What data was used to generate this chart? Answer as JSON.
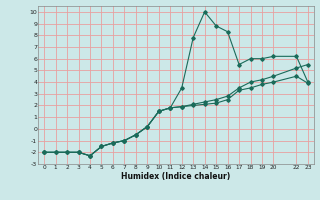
{
  "xlabel": "Humidex (Indice chaleur)",
  "ylabel": "",
  "xlim": [
    -0.5,
    23.5
  ],
  "ylim": [
    -3,
    10.5
  ],
  "xtick_positions": [
    0,
    1,
    2,
    3,
    4,
    5,
    6,
    7,
    8,
    9,
    10,
    11,
    12,
    13,
    14,
    15,
    16,
    17,
    18,
    19,
    20,
    22,
    23
  ],
  "xtick_labels": [
    "0",
    "1",
    "2",
    "3",
    "4",
    "5",
    "6",
    "7",
    "8",
    "9",
    "10",
    "11",
    "12",
    "13",
    "14",
    "15",
    "16",
    "17",
    "18",
    "19",
    "20",
    "22",
    "23"
  ],
  "ytick_positions": [
    -3,
    -2,
    -1,
    0,
    1,
    2,
    3,
    4,
    5,
    6,
    7,
    8,
    9,
    10
  ],
  "ytick_labels": [
    "-3",
    "-2",
    "-1",
    "0",
    "1",
    "2",
    "3",
    "4",
    "5",
    "6",
    "7",
    "8",
    "9",
    "10"
  ],
  "bg_color": "#cce8e8",
  "grid_color": "#e8a0a0",
  "line_color": "#1a6b5a",
  "series": [
    {
      "x": [
        0,
        1,
        2,
        3,
        4,
        5,
        6,
        7,
        8,
        9,
        10,
        11,
        12,
        13,
        14,
        15,
        16,
        17,
        18,
        19,
        20,
        22,
        23
      ],
      "y": [
        -2,
        -2,
        -2,
        -2,
        -2.3,
        -1.5,
        -1.2,
        -1.0,
        -0.5,
        0.2,
        1.5,
        1.8,
        3.5,
        7.8,
        10.0,
        8.8,
        8.3,
        5.5,
        6.0,
        6.0,
        6.2,
        6.2,
        4.0
      ]
    },
    {
      "x": [
        0,
        1,
        2,
        3,
        4,
        5,
        6,
        7,
        8,
        9,
        10,
        11,
        12,
        13,
        14,
        15,
        16,
        17,
        18,
        19,
        20,
        22,
        23
      ],
      "y": [
        -2,
        -2,
        -2,
        -2,
        -2.3,
        -1.5,
        -1.2,
        -1.0,
        -0.5,
        0.2,
        1.5,
        1.8,
        1.9,
        2.1,
        2.3,
        2.5,
        2.8,
        3.5,
        4.0,
        4.2,
        4.5,
        5.2,
        5.5
      ]
    },
    {
      "x": [
        0,
        3,
        4,
        5,
        6,
        7,
        8,
        9,
        10,
        11,
        12,
        13,
        14,
        15,
        16,
        17,
        18,
        19,
        20,
        22,
        23
      ],
      "y": [
        -2,
        -2,
        -2.3,
        -1.5,
        -1.2,
        -1.0,
        -0.5,
        0.2,
        1.5,
        1.8,
        1.9,
        2.0,
        2.1,
        2.2,
        2.5,
        3.3,
        3.5,
        3.8,
        4.0,
        4.5,
        3.9
      ]
    }
  ]
}
